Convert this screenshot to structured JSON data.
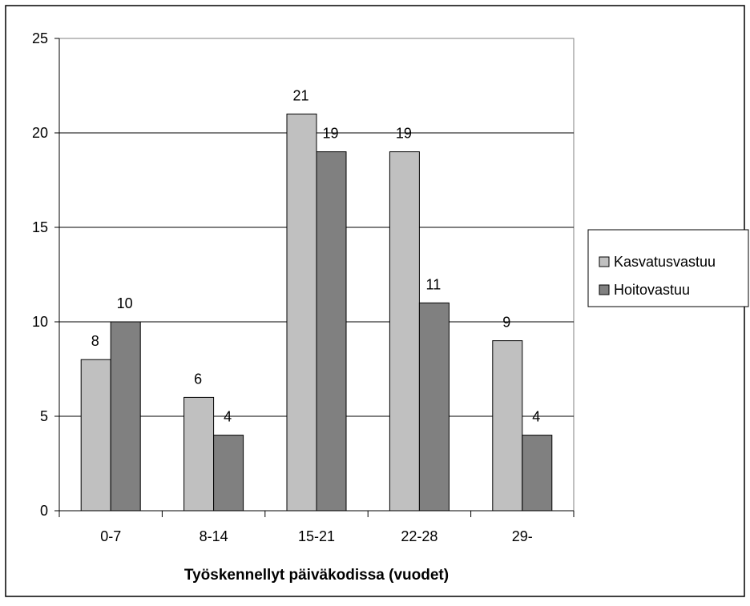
{
  "chart_data": {
    "type": "bar",
    "title": "",
    "xlabel": "Työskennellyt päiväkodissa (vuodet)",
    "ylabel": "",
    "categories": [
      "0-7",
      "8-14",
      "15-21",
      "22-28",
      "29-"
    ],
    "series": [
      {
        "name": "Kasvatusvastuu",
        "values": [
          8,
          6,
          21,
          19,
          9
        ],
        "color": "#c0c0c0"
      },
      {
        "name": "Hoitovastuu",
        "values": [
          10,
          4,
          19,
          11,
          4
        ],
        "color": "#808080"
      }
    ],
    "ylim": [
      0,
      25
    ],
    "yticks": [
      0,
      5,
      10,
      15,
      20,
      25
    ],
    "grid": true,
    "legend": "right",
    "data_labels": true
  }
}
